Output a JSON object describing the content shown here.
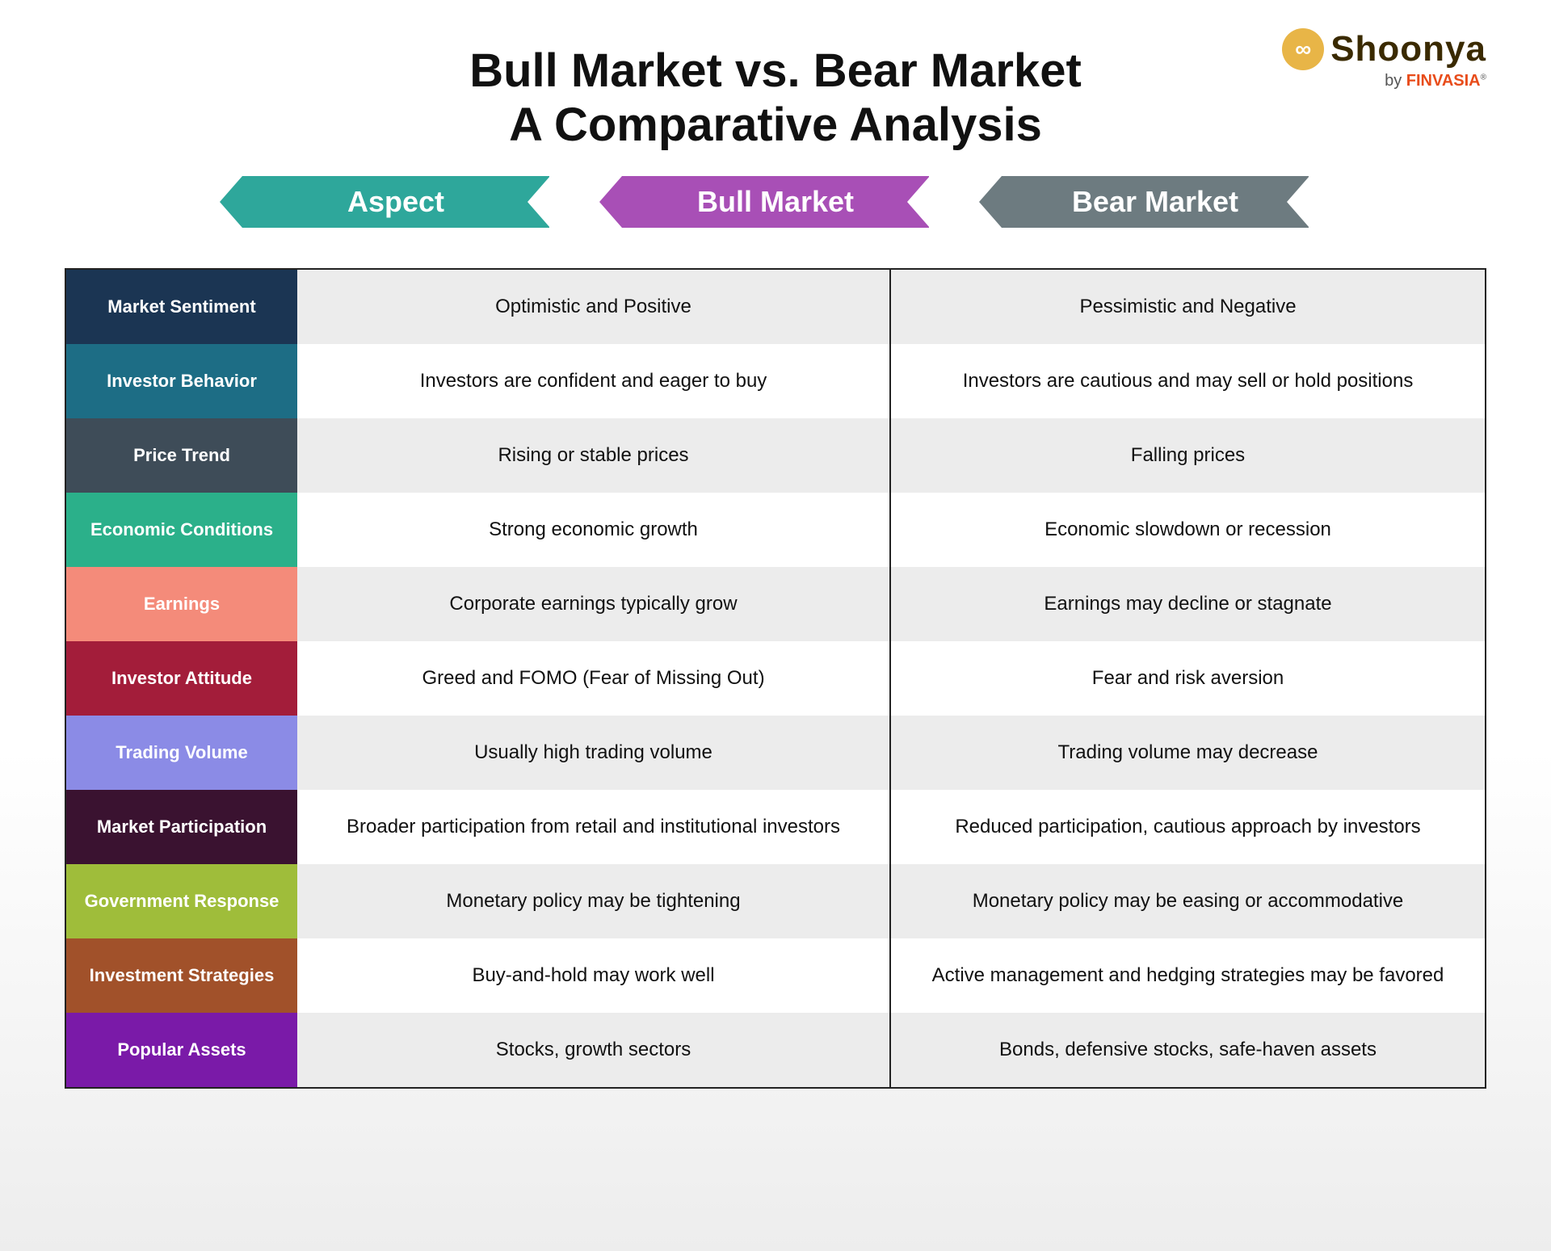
{
  "title_line1": "Bull Market vs. Bear Market",
  "title_line2": "A Comparative Analysis",
  "logo": {
    "brand": "Shoonya",
    "byline_prefix": "by ",
    "byline_brand": "FINVASIA",
    "reg": "®"
  },
  "headers": {
    "aspect": {
      "label": "Aspect",
      "color": "#2ea79b"
    },
    "bull": {
      "label": "Bull Market",
      "color": "#a84fb6"
    },
    "bear": {
      "label": "Bear Market",
      "color": "#6d7b80"
    }
  },
  "rows": [
    {
      "aspect": "Market Sentiment",
      "color": "#1b3553",
      "bull": "Optimistic and Positive",
      "bear": "Pessimistic and Negative"
    },
    {
      "aspect": "Investor Behavior",
      "color": "#1d6d85",
      "bull": "Investors are confident and eager to buy",
      "bear": "Investors are cautious and may sell or hold positions"
    },
    {
      "aspect": "Price Trend",
      "color": "#3e4c58",
      "bull": "Rising or stable prices",
      "bear": "Falling prices"
    },
    {
      "aspect": "Economic Conditions",
      "color": "#2bb08a",
      "bull": "Strong economic growth",
      "bear": "Economic slowdown or recession"
    },
    {
      "aspect": "Earnings",
      "color": "#f48b7a",
      "bull": "Corporate earnings typically grow",
      "bear": "Earnings may decline or stagnate"
    },
    {
      "aspect": "Investor Attitude",
      "color": "#a31d3a",
      "bull": "Greed and FOMO (Fear of Missing Out)",
      "bear": "Fear and risk aversion"
    },
    {
      "aspect": "Trading Volume",
      "color": "#8b8be6",
      "bull": "Usually high trading volume",
      "bear": "Trading volume may decrease"
    },
    {
      "aspect": "Market Participation",
      "color": "#3a1230",
      "bull": "Broader participation from retail and institutional investors",
      "bear": "Reduced participation, cautious approach by investors"
    },
    {
      "aspect": "Government Response",
      "color": "#9fbd3a",
      "bull": "Monetary policy may be tightening",
      "bear": "Monetary policy may be easing or accommodative"
    },
    {
      "aspect": "Investment Strategies",
      "color": "#a1512a",
      "bull": "Buy-and-hold may work well",
      "bear": "Active management and hedging strategies may be favored"
    },
    {
      "aspect": "Popular Assets",
      "color": "#7a1aa8",
      "bull": "Stocks, growth sectors",
      "bear": "Bonds, defensive stocks, safe-haven assets"
    }
  ]
}
